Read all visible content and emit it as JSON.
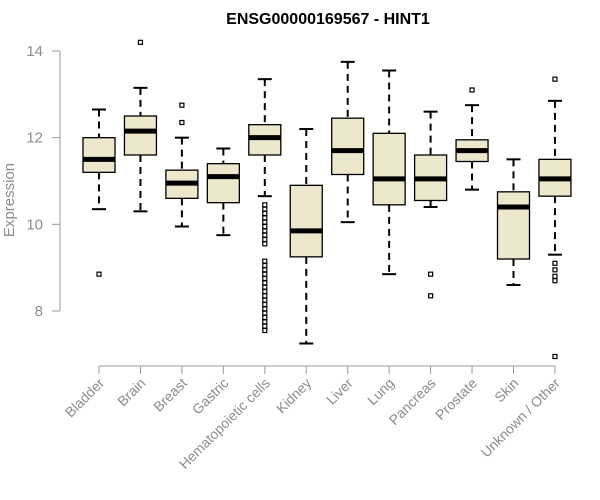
{
  "chart_data": {
    "type": "boxplot",
    "title": "ENSG00000169567 - HINT1",
    "xlabel": "",
    "ylabel": "Expression",
    "ylim": [
      6.8,
      14.5
    ],
    "yticks": [
      "8",
      "10",
      "12",
      "14"
    ],
    "colors": {
      "box_fill": "#ede7cc",
      "box_stroke": "#000000",
      "axis": "#999999",
      "label": "#8c8c8c"
    },
    "categories": [
      "Bladder",
      "Brain",
      "Breast",
      "Gastric",
      "Hematopoietic cells",
      "Kidney",
      "Liver",
      "Lung",
      "Pancreas",
      "Prostate",
      "Skin",
      "Unknown / Other"
    ],
    "boxes": [
      {
        "name": "Bladder",
        "min": 10.35,
        "q1": 11.2,
        "median": 11.5,
        "q3": 12.0,
        "max": 12.65,
        "outliers": [
          8.85
        ]
      },
      {
        "name": "Brain",
        "min": 10.3,
        "q1": 11.6,
        "median": 12.15,
        "q3": 12.5,
        "max": 13.15,
        "outliers": [
          14.2
        ]
      },
      {
        "name": "Breast",
        "min": 9.95,
        "q1": 10.6,
        "median": 10.95,
        "q3": 11.25,
        "max": 12.0,
        "outliers": [
          12.35,
          12.75
        ]
      },
      {
        "name": "Gastric",
        "min": 9.75,
        "q1": 10.5,
        "median": 11.1,
        "q3": 11.4,
        "max": 11.75,
        "outliers": []
      },
      {
        "name": "Hematopoietic cells",
        "min": 10.65,
        "q1": 11.6,
        "median": 12.0,
        "q3": 12.3,
        "max": 13.35,
        "outliers": [
          7.55,
          7.65,
          7.75,
          7.85,
          7.95,
          8.05,
          8.15,
          8.25,
          8.35,
          8.45,
          8.55,
          8.65,
          8.75,
          8.85,
          8.95,
          9.05,
          9.15,
          9.55,
          9.65,
          9.75,
          9.85,
          9.95,
          10.05,
          10.15,
          10.25,
          10.35,
          10.45
        ]
      },
      {
        "name": "Kidney",
        "min": 7.25,
        "q1": 9.25,
        "median": 9.85,
        "q3": 10.9,
        "max": 12.2,
        "outliers": []
      },
      {
        "name": "Liver",
        "min": 10.05,
        "q1": 11.15,
        "median": 11.7,
        "q3": 12.45,
        "max": 13.75,
        "outliers": []
      },
      {
        "name": "Lung",
        "min": 8.85,
        "q1": 10.45,
        "median": 11.05,
        "q3": 12.1,
        "max": 13.55,
        "outliers": []
      },
      {
        "name": "Pancreas",
        "min": 10.4,
        "q1": 10.55,
        "median": 11.05,
        "q3": 11.6,
        "max": 12.6,
        "outliers": [
          8.35,
          8.85
        ]
      },
      {
        "name": "Prostate",
        "min": 10.8,
        "q1": 11.45,
        "median": 11.7,
        "q3": 11.95,
        "max": 12.75,
        "outliers": [
          13.1
        ]
      },
      {
        "name": "Skin",
        "min": 8.6,
        "q1": 9.2,
        "median": 10.4,
        "q3": 10.75,
        "max": 11.5,
        "outliers": []
      },
      {
        "name": "Unknown / Other",
        "min": 9.3,
        "q1": 10.65,
        "median": 11.05,
        "q3": 11.5,
        "max": 12.85,
        "outliers": [
          6.95,
          8.7,
          8.8,
          8.95,
          9.1,
          13.35
        ]
      }
    ]
  }
}
